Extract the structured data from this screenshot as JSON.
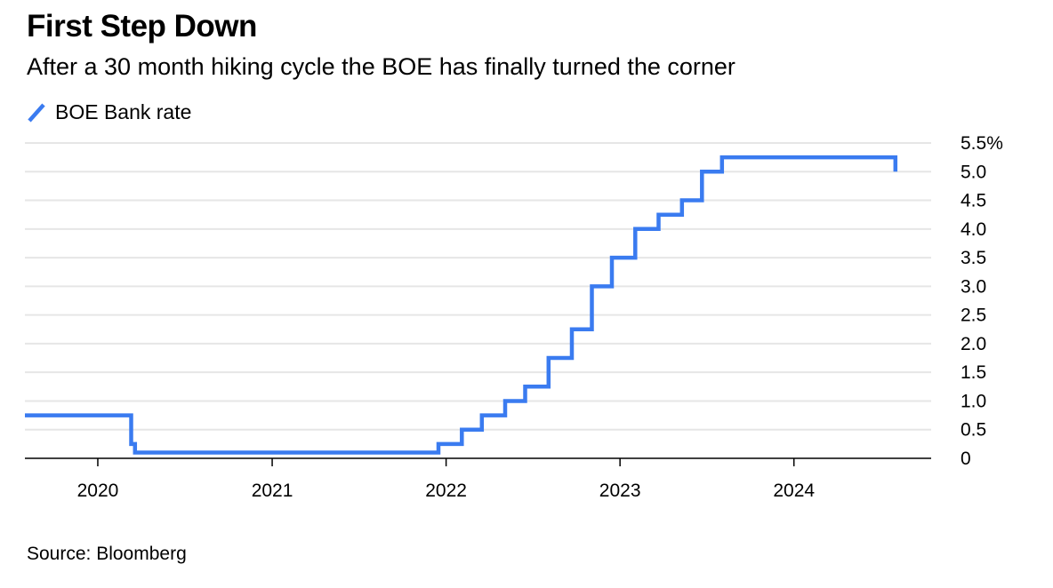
{
  "title": "First Step Down",
  "subtitle": "After a 30 month hiking cycle the BOE has finally turned the corner",
  "source": "Source: Bloomberg",
  "colors": {
    "series": "#3a7bf0",
    "grid": "#e6e6e6",
    "axis": "#000000"
  },
  "chart_data": {
    "type": "line",
    "step": true,
    "title": "First Step Down",
    "subtitle": "After a 30 month hiking cycle the BOE has finally turned the corner",
    "xlim": [
      "2019-08-01",
      "2024-10-15"
    ],
    "ylim": [
      0,
      5.5
    ],
    "y_axis_side": "right",
    "grid": "horizontal",
    "legend_position": "top-left",
    "x_ticks": [
      "2020",
      "2021",
      "2022",
      "2023",
      "2024"
    ],
    "y_ticks": [
      "0",
      "0.5",
      "1.0",
      "1.5",
      "2.0",
      "2.5",
      "3.0",
      "3.5",
      "4.0",
      "4.5",
      "5.0",
      "5.5%"
    ],
    "series": [
      {
        "name": "BOE Bank rate",
        "points": [
          [
            "2019-08-01",
            0.75
          ],
          [
            "2020-03-11",
            0.25
          ],
          [
            "2020-03-19",
            0.1
          ],
          [
            "2021-12-16",
            0.25
          ],
          [
            "2022-02-03",
            0.5
          ],
          [
            "2022-03-17",
            0.75
          ],
          [
            "2022-05-05",
            1.0
          ],
          [
            "2022-06-16",
            1.25
          ],
          [
            "2022-08-04",
            1.75
          ],
          [
            "2022-09-22",
            2.25
          ],
          [
            "2022-11-03",
            3.0
          ],
          [
            "2022-12-15",
            3.5
          ],
          [
            "2023-02-02",
            4.0
          ],
          [
            "2023-03-23",
            4.25
          ],
          [
            "2023-05-11",
            4.5
          ],
          [
            "2023-06-22",
            5.0
          ],
          [
            "2023-08-03",
            5.25
          ],
          [
            "2024-08-01",
            5.0
          ]
        ]
      }
    ]
  }
}
